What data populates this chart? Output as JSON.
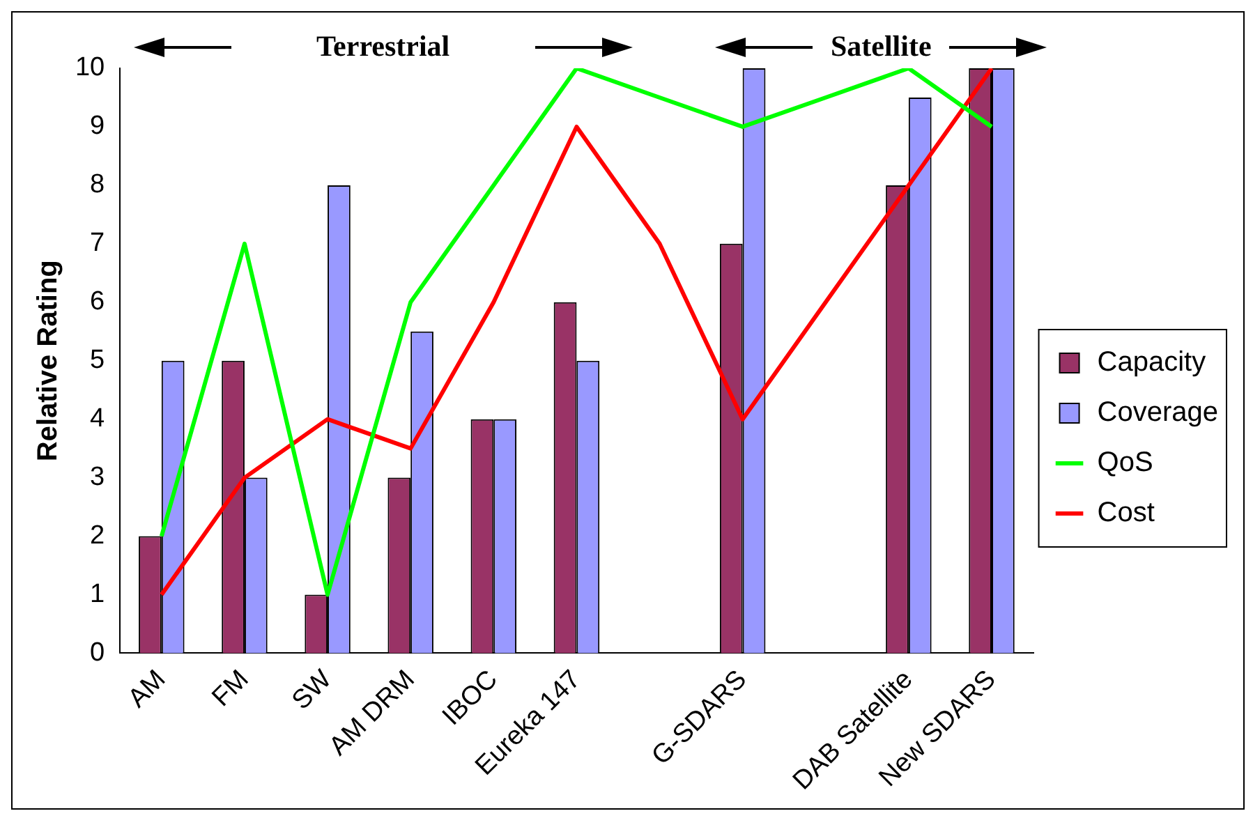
{
  "chart_data": {
    "type": "bar",
    "ylabel": "Relative Rating",
    "categories": [
      "AM",
      "FM",
      "SW",
      "AM DRM",
      "IBOC",
      "Eureka 147",
      null,
      "G-SDARS",
      null,
      "DAB Satellite",
      "New SDARS"
    ],
    "series": [
      {
        "name": "Capacity",
        "color": "#993366",
        "values": [
          2,
          5,
          1,
          3,
          4,
          6,
          null,
          7,
          null,
          8,
          10
        ]
      },
      {
        "name": "Coverage",
        "color": "#9999ff",
        "values": [
          5,
          3,
          8,
          5.5,
          4,
          5,
          null,
          10,
          null,
          9.5,
          10
        ]
      },
      {
        "name": "QoS",
        "type": "line",
        "color": "#00ff00",
        "values": [
          2,
          7,
          1,
          6,
          8,
          10,
          9.5,
          9,
          9.5,
          10,
          9
        ]
      },
      {
        "name": "Cost",
        "type": "line",
        "color": "#ff0000",
        "values": [
          1,
          3,
          4,
          3.5,
          6,
          9,
          7,
          4,
          6,
          8,
          10
        ]
      }
    ],
    "ylim": [
      0,
      10
    ],
    "yticks": [
      0,
      1,
      2,
      3,
      4,
      5,
      6,
      7,
      8,
      9,
      10
    ],
    "grid": false,
    "legend": "right",
    "marker": "none",
    "line_style": "solid",
    "annotations": [
      "Terrestrial",
      "Satellite"
    ]
  }
}
